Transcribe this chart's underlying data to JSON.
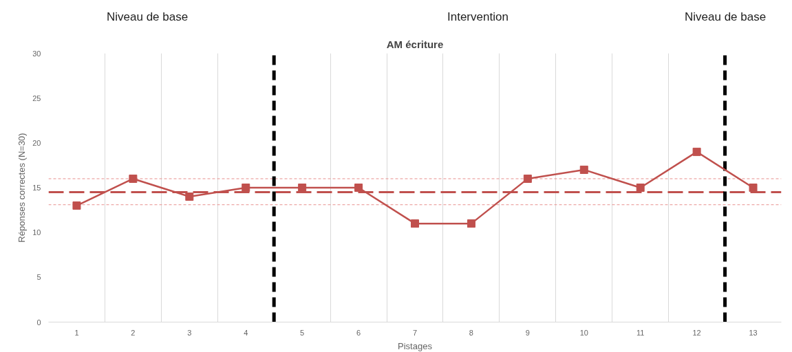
{
  "chart_data": {
    "type": "line",
    "title": "AM écriture",
    "xlabel": "Pistages",
    "ylabel": "Réponses correctes (N=30)",
    "x": [
      1,
      2,
      3,
      4,
      5,
      6,
      7,
      8,
      9,
      10,
      11,
      12,
      13
    ],
    "series": [
      {
        "color": "#c0504d",
        "values": [
          13,
          16,
          14,
          15,
          15,
          15,
          11,
          11,
          16,
          17,
          15,
          19,
          15
        ]
      }
    ],
    "xlim": [
      0.5,
      13.5
    ],
    "xticks": [
      1,
      2,
      3,
      4,
      5,
      6,
      7,
      8,
      9,
      10,
      11,
      12,
      13
    ],
    "ylim": [
      0,
      30
    ],
    "yticks": [
      0,
      5,
      10,
      15,
      20,
      25,
      30
    ],
    "grid": "x",
    "marker": "square",
    "line_style": "solid",
    "ref_lines": [
      {
        "axis": "y",
        "value": 14.5,
        "color": "#c0504d",
        "line_style": "dashed"
      },
      {
        "axis": "y",
        "value": 16,
        "color": "#e8908e",
        "line_style": "dotted"
      },
      {
        "axis": "y",
        "value": 13.1,
        "color": "#e8908e",
        "line_style": "dotted"
      },
      {
        "axis": "x",
        "value": 4.5,
        "color": "#000000",
        "line_style": "dashed"
      },
      {
        "axis": "x",
        "value": 12.5,
        "color": "#000000",
        "line_style": "dashed"
      }
    ],
    "annotations": [
      "Niveau de base",
      "Intervention",
      "Niveau de base"
    ]
  }
}
